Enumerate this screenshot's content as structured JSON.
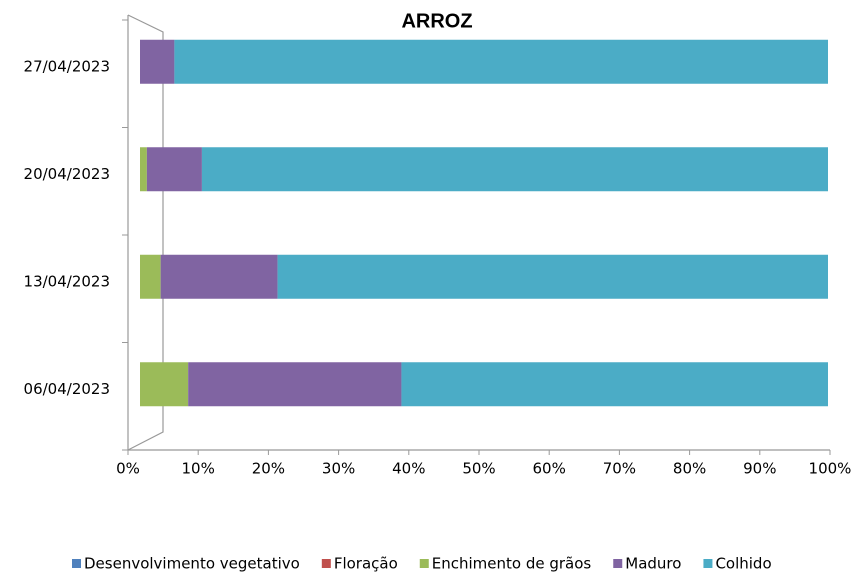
{
  "chart_data": {
    "type": "stacked_bar_horizontal",
    "title": "ARROZ",
    "categories": [
      "06/04/2023",
      "13/04/2023",
      "20/04/2023",
      "27/04/2023"
    ],
    "series": [
      {
        "name": "Desenvolvimento vegetativo",
        "color": "#4f81bd",
        "values": [
          0,
          0,
          0,
          0
        ]
      },
      {
        "name": "Floração",
        "color": "#c0504d",
        "values": [
          0,
          0,
          0,
          0
        ]
      },
      {
        "name": "Enchimento de grãos",
        "color": "#9bbb59",
        "values": [
          7,
          3,
          1,
          0
        ]
      },
      {
        "name": "Maduro",
        "color": "#8064a2",
        "values": [
          31,
          17,
          8,
          5
        ]
      },
      {
        "name": "Colhido",
        "color": "#4bacc6",
        "values": [
          62,
          80,
          91,
          95
        ]
      }
    ],
    "xlim": [
      0,
      100
    ],
    "xticks": [
      {
        "value": 0,
        "label": "0%"
      },
      {
        "value": 10,
        "label": "10%"
      },
      {
        "value": 20,
        "label": "20%"
      },
      {
        "value": 30,
        "label": "30%"
      },
      {
        "value": 40,
        "label": "40%"
      },
      {
        "value": 50,
        "label": "50%"
      },
      {
        "value": 60,
        "label": "60%"
      },
      {
        "value": 70,
        "label": "70%"
      },
      {
        "value": 80,
        "label": "80%"
      },
      {
        "value": 90,
        "label": "90%"
      },
      {
        "value": 100,
        "label": "100%"
      }
    ],
    "legend": "bottom"
  }
}
